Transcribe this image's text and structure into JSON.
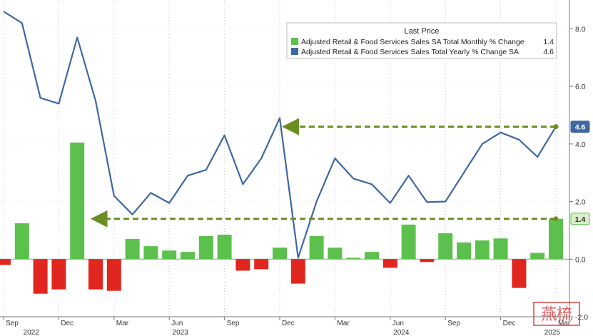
{
  "chart_data": {
    "type": "bar+line",
    "legend_title": "Last Price",
    "legend_position": "top-right",
    "series": [
      {
        "name": "Adjusted Retail & Food Services Sales SA Total Monthly % Change",
        "last_value": "1.4",
        "type": "bar",
        "color_positive": "#5cc14c",
        "color_negative": "#e0261e",
        "values": [
          -0.2,
          1.25,
          -1.2,
          -1.05,
          4.05,
          -1.05,
          -1.1,
          0.7,
          0.45,
          0.3,
          0.25,
          0.8,
          0.85,
          -0.4,
          -0.35,
          0.4,
          -0.85,
          0.8,
          0.4,
          0.05,
          0.25,
          -0.3,
          1.2,
          -0.1,
          0.9,
          0.58,
          0.65,
          0.72,
          -1.0,
          0.22,
          1.4
        ]
      },
      {
        "name": "Adjusted Retail & Food Services Sales Total Yearly % Change SA",
        "last_value": "4.6",
        "type": "line",
        "color": "#3f68a3",
        "values": [
          8.6,
          8.2,
          5.6,
          5.4,
          7.7,
          5.5,
          2.2,
          1.55,
          2.3,
          1.95,
          2.9,
          3.1,
          4.3,
          2.6,
          3.5,
          4.9,
          0.05,
          2.0,
          3.5,
          2.8,
          2.6,
          1.95,
          2.9,
          1.98,
          2.0,
          3.0,
          4.0,
          4.4,
          4.15,
          3.55,
          4.6
        ]
      }
    ],
    "y_axis": {
      "position": "right",
      "min": -2.0,
      "max": 9.0,
      "ticks": [
        -2.0,
        0.0,
        2.0,
        4.0,
        6.0,
        8.0
      ],
      "tick_labels": [
        "-2.0",
        "0.0",
        "2.0",
        "4.0",
        "6.0",
        "8.0"
      ]
    },
    "x_axis": {
      "month_ticks": [
        {
          "label": "Sep",
          "index": 0
        },
        {
          "label": "Dec",
          "index": 3
        },
        {
          "label": "Mar",
          "index": 6
        },
        {
          "label": "Jun",
          "index": 9
        },
        {
          "label": "Sep",
          "index": 12
        },
        {
          "label": "Dec",
          "index": 15
        },
        {
          "label": "Mar",
          "index": 18
        },
        {
          "label": "Jun",
          "index": 21
        },
        {
          "label": "Sep",
          "index": 24
        },
        {
          "label": "Dec",
          "index": 27
        },
        {
          "label": "Mar",
          "index": 30
        }
      ],
      "year_labels": [
        {
          "label": "2022",
          "index": 1.5
        },
        {
          "label": "2023",
          "index": 9.6
        },
        {
          "label": "2024",
          "index": 21.6
        },
        {
          "label": "2025",
          "index": 29.8
        }
      ]
    },
    "badges": [
      {
        "label": "4.6",
        "value": 4.6,
        "series": 1
      },
      {
        "label": "1.4",
        "value": 1.4,
        "series": 0
      }
    ],
    "annotations": [
      {
        "type": "dashed-arrow",
        "color": "#6b8e23",
        "from_index": 30,
        "to_index": 15.35,
        "value": 4.6
      },
      {
        "type": "dashed-arrow",
        "color": "#6b8e23",
        "from_index": 30,
        "to_index": 4.95,
        "value": 1.4
      }
    ],
    "gridlines": "vertical-dotted",
    "watermark": "燕梳"
  }
}
